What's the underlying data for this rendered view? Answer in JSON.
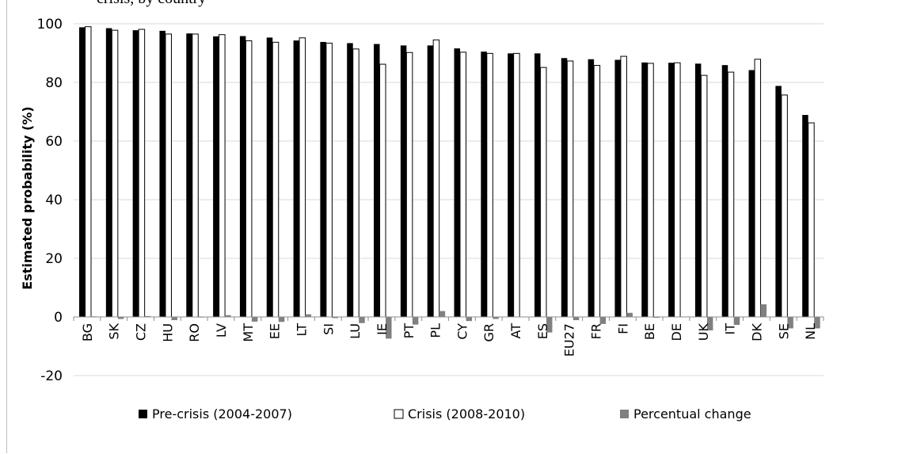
{
  "chart_data": {
    "type": "bar",
    "title": "crisis, by country",
    "ylabel": "Estimated probability (%)",
    "xlabel": "",
    "ylim": [
      -20,
      100
    ],
    "yticks": [
      -20,
      0,
      20,
      40,
      60,
      80,
      100
    ],
    "grid": true,
    "legend_position": "bottom",
    "categories": [
      "BG",
      "SK",
      "CZ",
      "HU",
      "RO",
      "LV",
      "MT",
      "EE",
      "LT",
      "SI",
      "LU",
      "IE",
      "PT",
      "PL",
      "CY",
      "GR",
      "AT",
      "ES",
      "EU27",
      "FR",
      "FI",
      "BE",
      "DE",
      "UK",
      "IT",
      "DK",
      "SE",
      "NL"
    ],
    "series": [
      {
        "name": "Pre-crisis (2004-2007)",
        "color": "#000000",
        "values": [
          98.8,
          98.5,
          97.8,
          97.6,
          96.7,
          95.7,
          95.8,
          95.3,
          94.3,
          93.8,
          93.4,
          93.1,
          92.6,
          92.6,
          91.6,
          90.5,
          89.9,
          89.9,
          88.3,
          87.9,
          87.7,
          86.8,
          86.7,
          86.4,
          85.9,
          84.2,
          78.8,
          68.9
        ]
      },
      {
        "name": "Crisis (2008-2010)",
        "color": "#ffffff",
        "values": [
          99.0,
          97.8,
          98.1,
          96.5,
          96.5,
          96.3,
          94.2,
          93.7,
          95.2,
          93.4,
          91.4,
          86.2,
          90.2,
          94.5,
          90.3,
          89.9,
          89.9,
          85.1,
          87.3,
          85.8,
          88.9,
          86.5,
          86.7,
          82.4,
          83.5,
          87.9,
          75.7,
          66.2
        ]
      },
      {
        "name": "Percentual change",
        "color": "#808080",
        "values": [
          0.2,
          -0.7,
          0.3,
          -1.1,
          -0.2,
          0.6,
          -1.6,
          -1.7,
          0.9,
          -0.4,
          -2.1,
          -7.4,
          -2.6,
          2.0,
          -1.4,
          -0.7,
          0.0,
          -5.3,
          -1.1,
          -2.4,
          1.4,
          -0.3,
          0.0,
          -4.6,
          -2.7,
          4.3,
          -3.9,
          -3.9
        ]
      }
    ]
  }
}
